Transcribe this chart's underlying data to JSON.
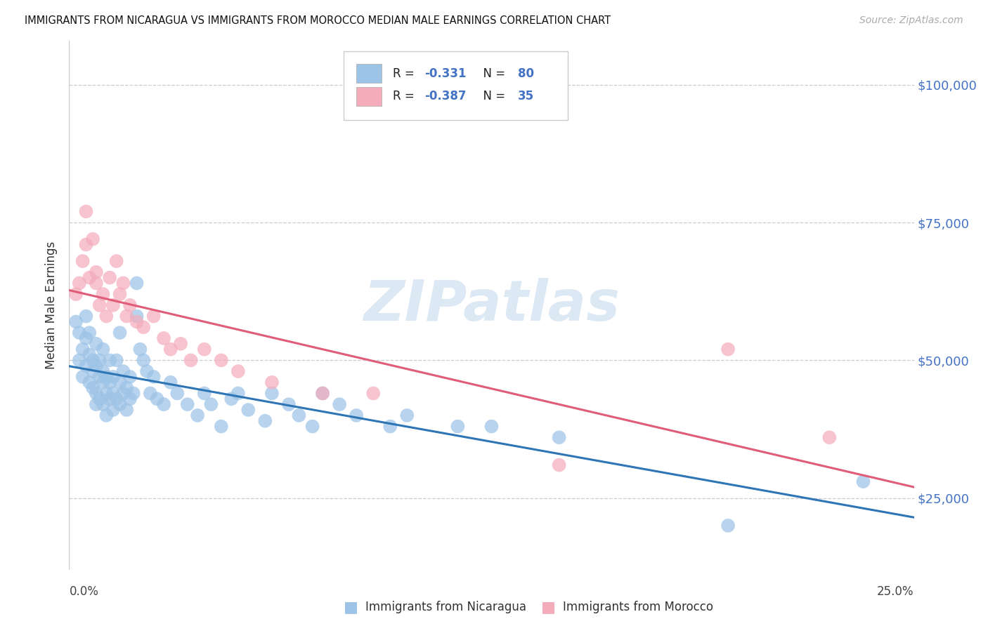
{
  "title": "IMMIGRANTS FROM NICARAGUA VS IMMIGRANTS FROM MOROCCO MEDIAN MALE EARNINGS CORRELATION CHART",
  "source": "Source: ZipAtlas.com",
  "ylabel": "Median Male Earnings",
  "ytick_labels": [
    "$25,000",
    "$50,000",
    "$75,000",
    "$100,000"
  ],
  "ytick_values": [
    25000,
    50000,
    75000,
    100000
  ],
  "ymin": 12000,
  "ymax": 108000,
  "xmin": 0.0,
  "xmax": 0.25,
  "legend1_R": "-0.331",
  "legend1_N": "80",
  "legend2_R": "-0.387",
  "legend2_N": "35",
  "legend_text_color": "#4472c4",
  "blue_scatter_color": "#9dc3e6",
  "pink_scatter_color": "#f4acbb",
  "blue_line_color": "#2e75b6",
  "pink_line_color": "#e05c78",
  "watermark_color": "#dce8f4",
  "nicaragua_x": [
    0.002,
    0.003,
    0.003,
    0.004,
    0.004,
    0.005,
    0.005,
    0.005,
    0.006,
    0.006,
    0.006,
    0.007,
    0.007,
    0.007,
    0.008,
    0.008,
    0.008,
    0.008,
    0.009,
    0.009,
    0.009,
    0.01,
    0.01,
    0.01,
    0.01,
    0.011,
    0.011,
    0.011,
    0.012,
    0.012,
    0.012,
    0.013,
    0.013,
    0.013,
    0.014,
    0.014,
    0.015,
    0.015,
    0.015,
    0.016,
    0.016,
    0.017,
    0.017,
    0.018,
    0.018,
    0.019,
    0.02,
    0.02,
    0.021,
    0.022,
    0.023,
    0.024,
    0.025,
    0.026,
    0.028,
    0.03,
    0.032,
    0.035,
    0.038,
    0.04,
    0.042,
    0.045,
    0.048,
    0.05,
    0.053,
    0.058,
    0.06,
    0.065,
    0.068,
    0.072,
    0.075,
    0.08,
    0.085,
    0.095,
    0.1,
    0.115,
    0.125,
    0.145,
    0.195,
    0.235
  ],
  "nicaragua_y": [
    57000,
    50000,
    55000,
    52000,
    47000,
    54000,
    49000,
    58000,
    51000,
    46000,
    55000,
    50000,
    45000,
    48000,
    44000,
    49000,
    42000,
    53000,
    47000,
    43000,
    50000,
    46000,
    42000,
    48000,
    52000,
    44000,
    40000,
    47000,
    43000,
    46000,
    50000,
    44000,
    41000,
    47000,
    43000,
    50000,
    42000,
    46000,
    55000,
    44000,
    48000,
    41000,
    45000,
    43000,
    47000,
    44000,
    58000,
    64000,
    52000,
    50000,
    48000,
    44000,
    47000,
    43000,
    42000,
    46000,
    44000,
    42000,
    40000,
    44000,
    42000,
    38000,
    43000,
    44000,
    41000,
    39000,
    44000,
    42000,
    40000,
    38000,
    44000,
    42000,
    40000,
    38000,
    40000,
    38000,
    38000,
    36000,
    20000,
    28000
  ],
  "morocco_x": [
    0.002,
    0.003,
    0.004,
    0.005,
    0.005,
    0.006,
    0.007,
    0.008,
    0.008,
    0.009,
    0.01,
    0.011,
    0.012,
    0.013,
    0.014,
    0.015,
    0.016,
    0.017,
    0.018,
    0.02,
    0.022,
    0.025,
    0.028,
    0.03,
    0.033,
    0.036,
    0.04,
    0.045,
    0.05,
    0.06,
    0.075,
    0.09,
    0.145,
    0.195,
    0.225
  ],
  "morocco_y": [
    62000,
    64000,
    68000,
    71000,
    77000,
    65000,
    72000,
    64000,
    66000,
    60000,
    62000,
    58000,
    65000,
    60000,
    68000,
    62000,
    64000,
    58000,
    60000,
    57000,
    56000,
    58000,
    54000,
    52000,
    53000,
    50000,
    52000,
    50000,
    48000,
    46000,
    44000,
    44000,
    31000,
    52000,
    36000
  ]
}
